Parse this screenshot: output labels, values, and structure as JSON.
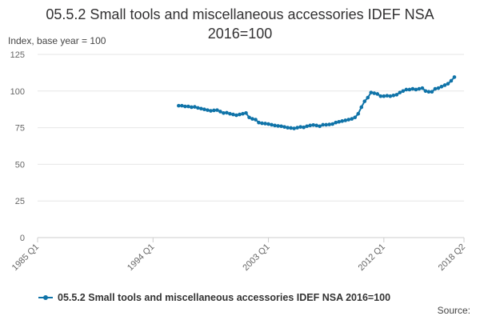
{
  "page": {
    "title_line1": "05.5.2 Small tools and miscellaneous accessories IDEF NSA",
    "title_line2": "2016=100",
    "source_label": "Source:"
  },
  "colors": {
    "series": "#0f73a8",
    "grid": "#e6e6e6",
    "axis": "#cccccc"
  },
  "chart_data": {
    "type": "line",
    "title": "05.5.2 Small tools and miscellaneous accessories IDEF NSA 2016=100",
    "ylabel": "Index, base year = 100",
    "xlabel": "",
    "ylim": [
      0,
      125
    ],
    "yticks": [
      0,
      25,
      50,
      75,
      100,
      125
    ],
    "xlim": [
      1985.0,
      2018.25
    ],
    "xticks": [
      {
        "value": 1985.0,
        "label": "1985 Q1"
      },
      {
        "value": 1994.0,
        "label": "1994 Q1"
      },
      {
        "value": 2003.0,
        "label": "2003 Q1"
      },
      {
        "value": 2012.0,
        "label": "2012 Q1"
      },
      {
        "value": 2018.25,
        "label": "2018 Q2"
      }
    ],
    "grid": true,
    "legend_position": "bottom",
    "series": [
      {
        "name": "05.5.2 Small tools and miscellaneous accessories IDEF NSA 2016=100",
        "points": [
          [
            "1996 Q1",
            90.0
          ],
          [
            "1996 Q2",
            90.0
          ],
          [
            "1996 Q3",
            89.5
          ],
          [
            "1996 Q4",
            89.5
          ],
          [
            "1997 Q1",
            89.0
          ],
          [
            "1997 Q2",
            89.2
          ],
          [
            "1997 Q3",
            88.5
          ],
          [
            "1997 Q4",
            88.0
          ],
          [
            "1998 Q1",
            87.5
          ],
          [
            "1998 Q2",
            87.0
          ],
          [
            "1998 Q3",
            86.5
          ],
          [
            "1998 Q4",
            86.8
          ],
          [
            "1999 Q1",
            87.0
          ],
          [
            "1999 Q2",
            86.0
          ],
          [
            "1999 Q3",
            85.0
          ],
          [
            "1999 Q4",
            85.2
          ],
          [
            "2000 Q1",
            84.5
          ],
          [
            "2000 Q2",
            84.0
          ],
          [
            "2000 Q3",
            83.5
          ],
          [
            "2000 Q4",
            84.0
          ],
          [
            "2001 Q1",
            84.5
          ],
          [
            "2001 Q2",
            85.0
          ],
          [
            "2001 Q3",
            82.0
          ],
          [
            "2001 Q4",
            81.0
          ],
          [
            "2002 Q1",
            80.5
          ],
          [
            "2002 Q2",
            78.5
          ],
          [
            "2002 Q3",
            78.0
          ],
          [
            "2002 Q4",
            77.8
          ],
          [
            "2003 Q1",
            77.5
          ],
          [
            "2003 Q2",
            77.0
          ],
          [
            "2003 Q3",
            76.5
          ],
          [
            "2003 Q4",
            76.2
          ],
          [
            "2004 Q1",
            76.0
          ],
          [
            "2004 Q2",
            75.5
          ],
          [
            "2004 Q3",
            75.0
          ],
          [
            "2004 Q4",
            74.8
          ],
          [
            "2005 Q1",
            74.5
          ],
          [
            "2005 Q2",
            75.0
          ],
          [
            "2005 Q3",
            75.5
          ],
          [
            "2005 Q4",
            75.2
          ],
          [
            "2006 Q1",
            76.0
          ],
          [
            "2006 Q2",
            76.5
          ],
          [
            "2006 Q3",
            76.8
          ],
          [
            "2006 Q4",
            76.5
          ],
          [
            "2007 Q1",
            76.0
          ],
          [
            "2007 Q2",
            77.0
          ],
          [
            "2007 Q3",
            77.0
          ],
          [
            "2007 Q4",
            77.2
          ],
          [
            "2008 Q1",
            77.5
          ],
          [
            "2008 Q2",
            78.5
          ],
          [
            "2008 Q3",
            79.0
          ],
          [
            "2008 Q4",
            79.5
          ],
          [
            "2009 Q1",
            80.0
          ],
          [
            "2009 Q2",
            80.5
          ],
          [
            "2009 Q3",
            81.0
          ],
          [
            "2009 Q4",
            82.0
          ],
          [
            "2010 Q1",
            84.5
          ],
          [
            "2010 Q2",
            89.0
          ],
          [
            "2010 Q3",
            93.0
          ],
          [
            "2010 Q4",
            95.5
          ],
          [
            "2011 Q1",
            99.0
          ],
          [
            "2011 Q2",
            98.5
          ],
          [
            "2011 Q3",
            98.0
          ],
          [
            "2011 Q4",
            96.5
          ],
          [
            "2012 Q1",
            96.5
          ],
          [
            "2012 Q2",
            96.8
          ],
          [
            "2012 Q3",
            96.5
          ],
          [
            "2012 Q4",
            97.0
          ],
          [
            "2013 Q1",
            97.5
          ],
          [
            "2013 Q2",
            99.0
          ],
          [
            "2013 Q3",
            100.0
          ],
          [
            "2013 Q4",
            101.0
          ],
          [
            "2014 Q1",
            101.0
          ],
          [
            "2014 Q2",
            101.5
          ],
          [
            "2014 Q3",
            101.0
          ],
          [
            "2014 Q4",
            101.5
          ],
          [
            "2015 Q1",
            102.0
          ],
          [
            "2015 Q2",
            100.0
          ],
          [
            "2015 Q3",
            99.5
          ],
          [
            "2015 Q4",
            99.5
          ],
          [
            "2016 Q1",
            101.5
          ],
          [
            "2016 Q2",
            102.0
          ],
          [
            "2016 Q3",
            103.0
          ],
          [
            "2016 Q4",
            104.0
          ],
          [
            "2017 Q1",
            105.0
          ],
          [
            "2017 Q2",
            107.0
          ],
          [
            "2017 Q3",
            109.5
          ]
        ]
      }
    ]
  }
}
